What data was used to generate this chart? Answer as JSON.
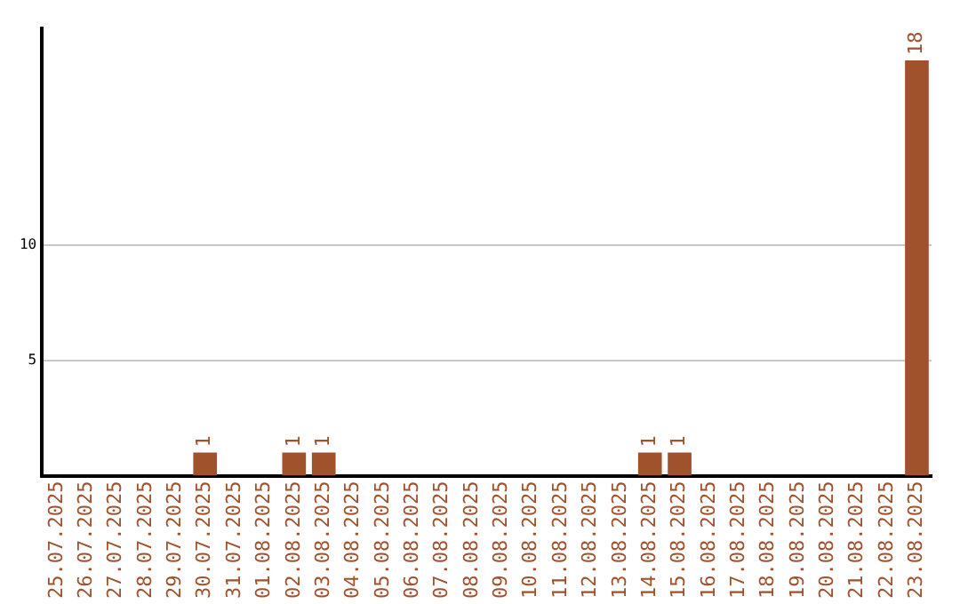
{
  "chart_data": {
    "type": "bar",
    "categories": [
      "25.07.2025",
      "26.07.2025",
      "27.07.2025",
      "28.07.2025",
      "29.07.2025",
      "30.07.2025",
      "31.07.2025",
      "01.08.2025",
      "02.08.2025",
      "03.08.2025",
      "04.08.2025",
      "05.08.2025",
      "06.08.2025",
      "07.08.2025",
      "08.08.2025",
      "09.08.2025",
      "10.08.2025",
      "11.08.2025",
      "12.08.2025",
      "13.08.2025",
      "14.08.2025",
      "15.08.2025",
      "16.08.2025",
      "17.08.2025",
      "18.08.2025",
      "19.08.2025",
      "20.08.2025",
      "21.08.2025",
      "22.08.2025",
      "23.08.2025"
    ],
    "values": [
      null,
      null,
      null,
      null,
      null,
      1,
      null,
      null,
      1,
      1,
      null,
      null,
      null,
      null,
      null,
      null,
      null,
      null,
      null,
      null,
      1,
      1,
      null,
      null,
      null,
      null,
      null,
      null,
      null,
      18
    ],
    "color": "#a0522d",
    "ylim": [
      0,
      19.4
    ],
    "yticks": [
      5,
      10
    ],
    "grid": "y",
    "data_labels": true,
    "legend": false
  }
}
